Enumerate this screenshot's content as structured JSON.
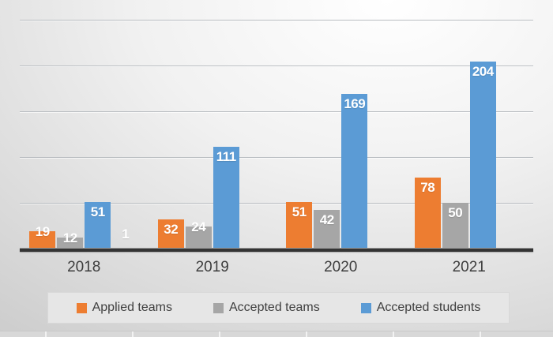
{
  "chart_data": {
    "type": "bar",
    "title": "",
    "xlabel": "",
    "ylabel": "",
    "categories": [
      "2018",
      "2019",
      "2020",
      "2021"
    ],
    "series": [
      {
        "name": "Applied teams",
        "color": "#ED7D31",
        "values": [
          19,
          32,
          51,
          78
        ],
        "in_legend": true
      },
      {
        "name": "Accepted teams",
        "color": "#A6A6A6",
        "values": [
          12,
          24,
          42,
          50
        ],
        "in_legend": true
      },
      {
        "name": "Accepted students",
        "color": "#5B9BD5",
        "values": [
          51,
          111,
          169,
          204
        ],
        "in_legend": true
      },
      {
        "name": "",
        "color": "transparent",
        "values": [
          1,
          null,
          null,
          null
        ],
        "in_legend": false
      }
    ],
    "ylim": [
      0,
      250
    ],
    "gridline_step": 50,
    "grid": true,
    "y_axis_labels_visible": false,
    "legend_position": "bottom",
    "data_labels": {
      "color": "#ffffff",
      "bold": true
    }
  },
  "legend": {
    "items": [
      {
        "label": "Applied teams",
        "color": "#ED7D31"
      },
      {
        "label": "Accepted teams",
        "color": "#A6A6A6"
      },
      {
        "label": "Accepted students",
        "color": "#5B9BD5"
      }
    ]
  },
  "colors": {
    "axis_line": "#343434",
    "gridline": "#b9bdc1",
    "x_label_text": "#3d3d3d",
    "legend_bg": "#e6e6e6",
    "data_label_text": "#ffffff"
  }
}
